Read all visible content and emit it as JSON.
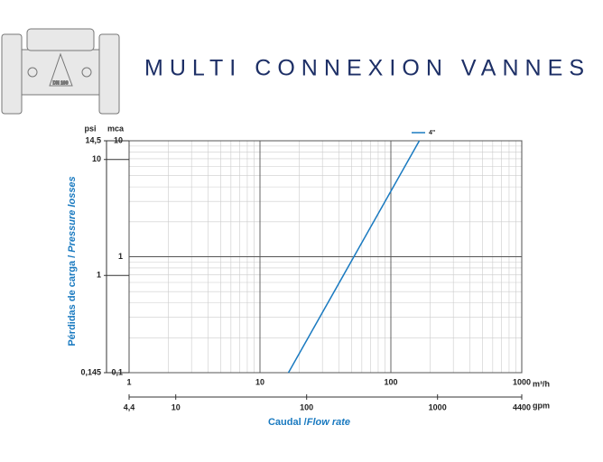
{
  "header": {
    "title": "MULTI CONNEXION VANNES"
  },
  "chart_data": {
    "type": "line",
    "y_label": "Pérdidas de carga /",
    "y_label_en": "Pressure losses",
    "x_label": "Caudal /",
    "x_label_en": "Flow rate",
    "x_unit": "m³/h",
    "x2_unit": "gpm",
    "y_unit": "mca",
    "y2_unit": "psi",
    "xlog": true,
    "ylog": true,
    "grid": true,
    "xlim": [
      1,
      1000
    ],
    "xticks": [
      1,
      10,
      100,
      1000
    ],
    "x2lim": [
      4.4,
      4400
    ],
    "x2ticks": [
      {
        "value": 4.4,
        "label": "4,4"
      },
      10,
      100,
      1000,
      4400
    ],
    "ylim": [
      0.1,
      10
    ],
    "yticks": [
      {
        "value": 0.1,
        "label": "0,1"
      },
      1,
      10
    ],
    "y2lim": [
      0.145,
      14.5
    ],
    "y2ticks": [
      {
        "value": 0.145,
        "label": "0,145"
      },
      1,
      10,
      {
        "value": 14.5,
        "label": "14,5"
      }
    ],
    "x": [
      16.5,
      165
    ],
    "series": [
      {
        "name": "4\"",
        "color": "#1a7ac0",
        "values": [
          0.1,
          10
        ]
      }
    ]
  }
}
